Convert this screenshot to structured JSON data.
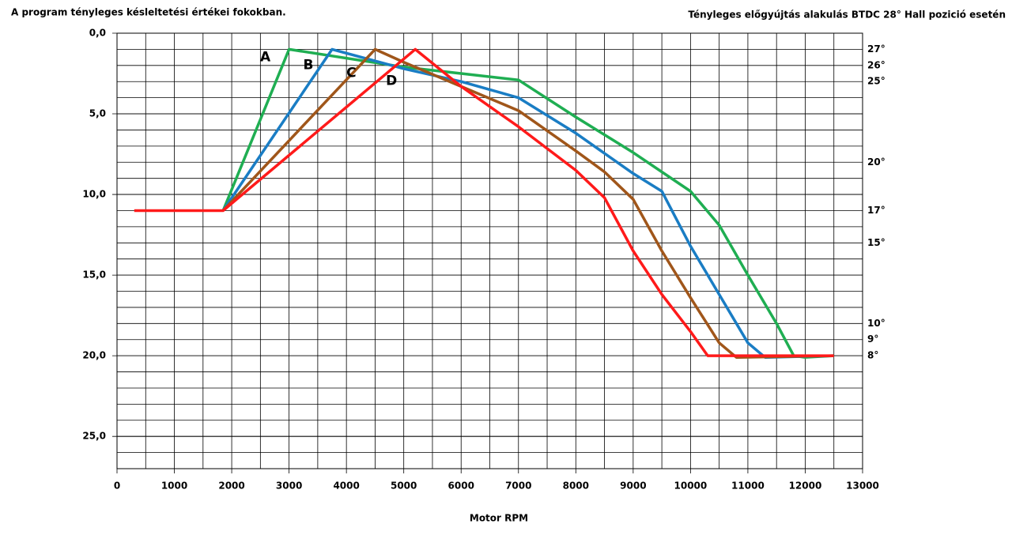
{
  "chart_data": {
    "type": "line",
    "title": "A program tényleges késleltetési értékei fokokban.",
    "subtitle": "Tényleges előgyújtás alakulás   BTDC 28° Hall pozició esetén",
    "x_label": "Motor RPM",
    "xlim": [
      0,
      13000
    ],
    "xticks": [
      0,
      1000,
      2000,
      3000,
      4000,
      5000,
      6000,
      7000,
      8000,
      9000,
      10000,
      11000,
      12000,
      13000
    ],
    "ylim": [
      0,
      27
    ],
    "y_inverted": true,
    "yticks": [
      {
        "value": 0,
        "label": "0,0"
      },
      {
        "value": 5,
        "label": "5,0"
      },
      {
        "value": 10,
        "label": "10,0"
      },
      {
        "value": 15,
        "label": "15,0"
      },
      {
        "value": 20,
        "label": "20,0"
      },
      {
        "value": 25,
        "label": "25,0"
      }
    ],
    "y2lim": [
      0,
      27
    ],
    "y2ticks": [
      {
        "value": 1,
        "label": "27°"
      },
      {
        "value": 2,
        "label": "26°"
      },
      {
        "value": 3,
        "label": "25°"
      },
      {
        "value": 8,
        "label": "20°"
      },
      {
        "value": 11,
        "label": "17°"
      },
      {
        "value": 13,
        "label": "15°"
      },
      {
        "value": 18,
        "label": "10°"
      },
      {
        "value": 19,
        "label": "9°"
      },
      {
        "value": 20,
        "label": "8°"
      }
    ],
    "grid": true,
    "series": [
      {
        "name": "A",
        "color": "#1fae52",
        "x": [
          1850,
          3000,
          5000,
          6000,
          7000,
          8000,
          9000,
          10000,
          10500,
          11000,
          11500,
          11800,
          12000,
          12500
        ],
        "values": [
          11,
          1,
          2.1,
          2.5,
          2.9,
          5.2,
          7.4,
          9.8,
          11.9,
          15,
          18,
          20,
          20.1,
          20
        ]
      },
      {
        "name": "B",
        "color": "#1a7dc4",
        "x": [
          1850,
          3750,
          5000,
          6000,
          7000,
          8000,
          9000,
          9500,
          10000,
          10500,
          11000,
          11300,
          12500
        ],
        "values": [
          11,
          1,
          2.2,
          3.0,
          4.0,
          6.2,
          8.7,
          9.8,
          13.2,
          16.2,
          19.2,
          20.1,
          20
        ]
      },
      {
        "name": "C",
        "color": "#a0561a",
        "x": [
          1850,
          4500,
          5000,
          6000,
          7000,
          8000,
          8500,
          9000,
          9500,
          10000,
          10500,
          10800,
          12500
        ],
        "values": [
          11,
          1,
          1.8,
          3.3,
          4.8,
          7.3,
          8.6,
          10.3,
          13.5,
          16.4,
          19.2,
          20.1,
          20
        ]
      },
      {
        "name": "D",
        "color": "#ff1a1a",
        "x": [
          300,
          1850,
          5200,
          6000,
          7000,
          8000,
          8500,
          9000,
          9500,
          10000,
          10300,
          10500,
          12500
        ],
        "values": [
          11,
          11,
          1,
          3.3,
          5.8,
          8.5,
          10.2,
          13.5,
          16.2,
          18.5,
          20,
          20,
          20
        ]
      }
    ]
  }
}
